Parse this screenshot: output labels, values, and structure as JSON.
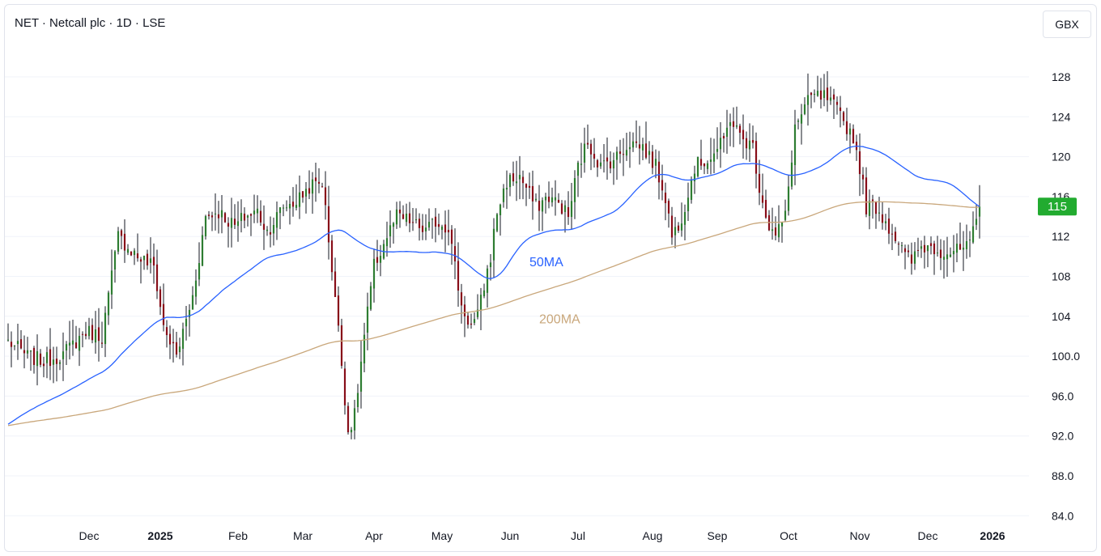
{
  "header": {
    "title": "NET · Netcall plc · 1D · LSE",
    "currency_label": "GBX"
  },
  "price_badge": "115",
  "colors": {
    "up": "#2e7d32",
    "down": "#880e19",
    "ma50": "#2962ff",
    "ma200": "#c9a77b",
    "grid": "#f0f3fa",
    "text": "#131722",
    "badge_bg": "#22ab30"
  },
  "chart_data": {
    "type": "candlestick",
    "ylim": [
      84.0,
      131.0
    ],
    "y_ticks": [
      "84.0",
      "88.0",
      "92.0",
      "96.0",
      "100.0",
      "104",
      "108",
      "112",
      "116",
      "120",
      "124",
      "128"
    ],
    "x_ticks": [
      {
        "label": "Dec",
        "year": false,
        "x": 25
      },
      {
        "label": "2025",
        "year": true,
        "x": 47
      },
      {
        "label": "Feb",
        "year": false,
        "x": 71
      },
      {
        "label": "Mar",
        "year": false,
        "x": 91
      },
      {
        "label": "Apr",
        "year": false,
        "x": 113
      },
      {
        "label": "May",
        "year": false,
        "x": 134
      },
      {
        "label": "Jun",
        "year": false,
        "x": 155
      },
      {
        "label": "Jul",
        "year": false,
        "x": 176
      },
      {
        "label": "Aug",
        "year": false,
        "x": 199
      },
      {
        "label": "Sep",
        "year": false,
        "x": 219
      },
      {
        "label": "Oct",
        "year": false,
        "x": 241
      },
      {
        "label": "Nov",
        "year": false,
        "x": 263
      },
      {
        "label": "Dec",
        "year": false,
        "x": 284
      },
      {
        "label": "2026",
        "year": true,
        "x": 304
      }
    ],
    "ma_labels": [
      {
        "text": "50MA",
        "series": "ma50",
        "x": 161,
        "y": 109.0
      },
      {
        "text": "200MA",
        "series": "ma200",
        "x": 164,
        "y": 103.3
      }
    ],
    "keypoints": [
      [
        0,
        101.5
      ],
      [
        6,
        100.0
      ],
      [
        11,
        99.5
      ],
      [
        17,
        100.2
      ],
      [
        24,
        102.5
      ],
      [
        29,
        102.0
      ],
      [
        34,
        112.0
      ],
      [
        40,
        110.0
      ],
      [
        45,
        109.0
      ],
      [
        48,
        103.0
      ],
      [
        52,
        100.0
      ],
      [
        57,
        106.0
      ],
      [
        61,
        114.0
      ],
      [
        65,
        114.5
      ],
      [
        70,
        113.0
      ],
      [
        73,
        114.0
      ],
      [
        77,
        114.5
      ],
      [
        80,
        112.5
      ],
      [
        85,
        115.0
      ],
      [
        89,
        115.5
      ],
      [
        93,
        117.0
      ],
      [
        97,
        117.5
      ],
      [
        101,
        106.0
      ],
      [
        105,
        92.5
      ],
      [
        107,
        94.0
      ],
      [
        110,
        102.0
      ],
      [
        113,
        109.0
      ],
      [
        117,
        112.0
      ],
      [
        120,
        114.0
      ],
      [
        124,
        113.5
      ],
      [
        129,
        112.5
      ],
      [
        132,
        113.5
      ],
      [
        136,
        113.0
      ],
      [
        140,
        105.0
      ],
      [
        143,
        103.0
      ],
      [
        145,
        104.0
      ],
      [
        149,
        110.0
      ],
      [
        151,
        114.5
      ],
      [
        154,
        117.5
      ],
      [
        158,
        118.0
      ],
      [
        163,
        115.0
      ],
      [
        167,
        116.0
      ],
      [
        171,
        115.0
      ],
      [
        173,
        114.0
      ],
      [
        176,
        119.0
      ],
      [
        179,
        121.5
      ],
      [
        183,
        119.0
      ],
      [
        188,
        120.0
      ],
      [
        192,
        121.5
      ],
      [
        196,
        121.0
      ],
      [
        200,
        119.0
      ],
      [
        203,
        116.0
      ],
      [
        205,
        112.0
      ],
      [
        208,
        114.0
      ],
      [
        212,
        119.0
      ],
      [
        217,
        120.0
      ],
      [
        221,
        121.5
      ],
      [
        223,
        124.0
      ],
      [
        226,
        122.0
      ],
      [
        230,
        121.0
      ],
      [
        232,
        117.0
      ],
      [
        235,
        113.0
      ],
      [
        237,
        112.0
      ],
      [
        240,
        114.0
      ],
      [
        243,
        123.0
      ],
      [
        248,
        126.0
      ],
      [
        252,
        126.0
      ],
      [
        255,
        125.0
      ],
      [
        258,
        123.5
      ],
      [
        261,
        122.0
      ],
      [
        263,
        119.0
      ],
      [
        265,
        115.0
      ],
      [
        268,
        115.0
      ],
      [
        271,
        113.5
      ],
      [
        274,
        112.0
      ],
      [
        277,
        110.0
      ],
      [
        279,
        109.5
      ],
      [
        282,
        111.0
      ],
      [
        285,
        111.0
      ],
      [
        289,
        110.5
      ],
      [
        293,
        110.5
      ],
      [
        297,
        111.0
      ],
      [
        300,
        115.0
      ]
    ],
    "n_bars": 301,
    "seed": 7,
    "last_close": 115.0,
    "ma50": {
      "name": "50MA",
      "period": 50
    },
    "ma200": {
      "name": "200MA",
      "period": 200
    }
  }
}
